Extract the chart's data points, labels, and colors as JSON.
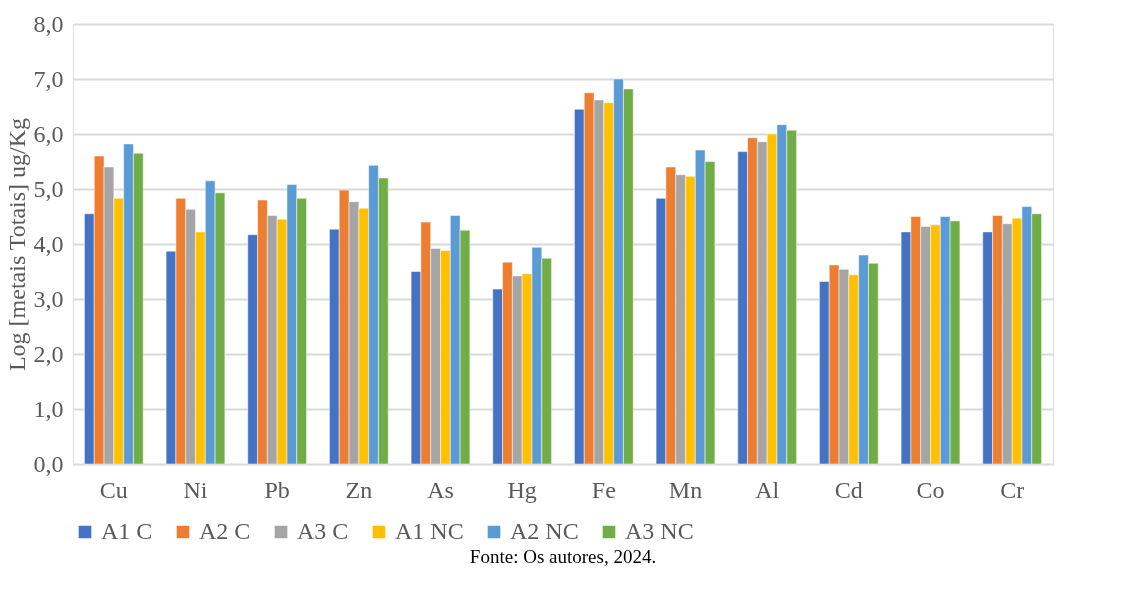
{
  "chart_data": {
    "type": "bar",
    "ylabel": "Log [metais Totais] ug/Kg",
    "categories": [
      "Cu",
      "Ni",
      "Pb",
      "Zn",
      "As",
      "Hg",
      "Fe",
      "Mn",
      "Al",
      "Cd",
      "Co",
      "Cr"
    ],
    "series": [
      {
        "name": "A1 C",
        "color": "#4472c4",
        "values": [
          4.55,
          3.87,
          4.17,
          4.27,
          3.5,
          3.18,
          6.45,
          4.83,
          5.68,
          3.32,
          4.22,
          4.22
        ]
      },
      {
        "name": "A2 C",
        "color": "#ed7d31",
        "values": [
          5.6,
          4.83,
          4.8,
          4.98,
          4.4,
          3.67,
          6.75,
          5.4,
          5.93,
          3.62,
          4.5,
          4.52
        ]
      },
      {
        "name": "A3 C",
        "color": "#a5a5a5",
        "values": [
          5.4,
          4.63,
          4.52,
          4.77,
          3.92,
          3.42,
          6.62,
          5.26,
          5.86,
          3.54,
          4.32,
          4.37
        ]
      },
      {
        "name": "A1 NC",
        "color": "#ffc000",
        "values": [
          4.83,
          4.22,
          4.45,
          4.65,
          3.88,
          3.46,
          6.57,
          5.23,
          6.0,
          3.44,
          4.35,
          4.47
        ]
      },
      {
        "name": "A2 NC",
        "color": "#5b9bd5",
        "values": [
          5.82,
          5.15,
          5.08,
          5.43,
          4.52,
          3.94,
          7.0,
          5.71,
          6.17,
          3.8,
          4.5,
          4.68
        ]
      },
      {
        "name": "A3 NC",
        "color": "#70ad47",
        "values": [
          5.65,
          4.93,
          4.83,
          5.2,
          4.25,
          3.74,
          6.82,
          5.5,
          6.07,
          3.65,
          4.42,
          4.55
        ]
      }
    ],
    "ylim": [
      0,
      8
    ],
    "yticks": [
      {
        "value": 0,
        "label": "0,0"
      },
      {
        "value": 1,
        "label": "1,0"
      },
      {
        "value": 2,
        "label": "2,0"
      },
      {
        "value": 3,
        "label": "3,0"
      },
      {
        "value": 4,
        "label": "4,0"
      },
      {
        "value": 5,
        "label": "5,0"
      },
      {
        "value": 6,
        "label": "6,0"
      },
      {
        "value": 7,
        "label": "7,0"
      },
      {
        "value": 8,
        "label": "8,0"
      }
    ],
    "grid": "y",
    "legend": "bottom",
    "annotations": [
      "Fonte: Os autores, 2024."
    ]
  }
}
